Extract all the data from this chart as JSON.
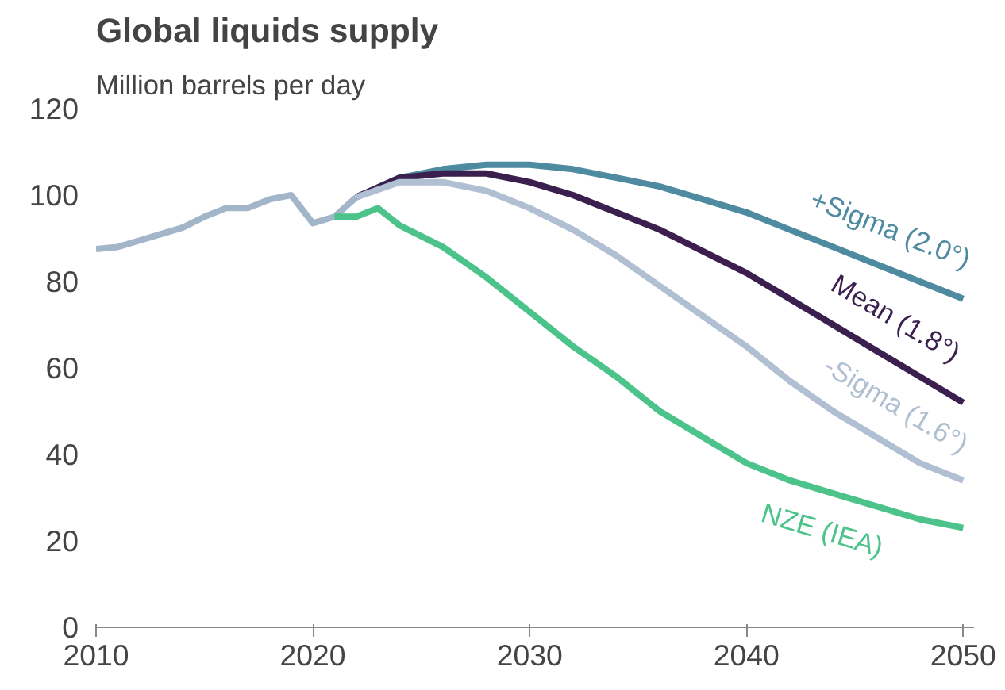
{
  "chart_data": {
    "type": "line",
    "title": "Global liquids supply",
    "subtitle": "Million barrels per day",
    "xlim": [
      2010,
      2050.5
    ],
    "xticks": [
      2010,
      2020,
      2030,
      2040,
      2050
    ],
    "ylim": [
      0,
      120
    ],
    "yticks": [
      0,
      20,
      40,
      60,
      80,
      100,
      120
    ],
    "grid": false,
    "marker": "none",
    "line_style": "solid",
    "series": [
      {
        "color": "#a3b6c9",
        "x": [
          2010,
          2011,
          2012,
          2013,
          2014,
          2015,
          2016,
          2017,
          2018,
          2019,
          2020,
          2021,
          2022
        ],
        "values": [
          87.5,
          88,
          89.5,
          91,
          92.5,
          95,
          97,
          97,
          99,
          100,
          93.5,
          95,
          99.5
        ]
      },
      {
        "name": "+Sigma (2.0°)",
        "color": "#4e8aa0",
        "x": [
          2022,
          2024,
          2026,
          2028,
          2030,
          2032,
          2034,
          2036,
          2038,
          2040,
          2042,
          2044,
          2046,
          2048,
          2050
        ],
        "values": [
          99.5,
          104,
          106,
          107,
          107,
          106,
          104,
          102,
          99,
          96,
          92,
          88,
          84,
          80,
          76
        ]
      },
      {
        "name": "Mean (1.8°)",
        "color": "#3b1f4f",
        "x": [
          2022,
          2024,
          2026,
          2028,
          2030,
          2032,
          2034,
          2036,
          2038,
          2040,
          2042,
          2044,
          2046,
          2048,
          2050
        ],
        "values": [
          99.5,
          104,
          105,
          105,
          103,
          100,
          96,
          92,
          87,
          82,
          76,
          70,
          64,
          58,
          52
        ]
      },
      {
        "name": "-Sigma (1.6°)",
        "color": "#b0bfd2",
        "x": [
          2022,
          2024,
          2026,
          2028,
          2030,
          2032,
          2034,
          2036,
          2038,
          2040,
          2042,
          2044,
          2046,
          2048,
          2050
        ],
        "values": [
          99.5,
          103,
          103,
          101,
          97,
          92,
          86,
          79,
          72,
          65,
          57,
          50,
          44,
          38,
          34
        ]
      },
      {
        "name": "NZE (IEA)",
        "color": "#4cc38a",
        "x": [
          2021,
          2022,
          2023,
          2024,
          2026,
          2028,
          2030,
          2032,
          2034,
          2036,
          2038,
          2040,
          2042,
          2044,
          2046,
          2048,
          2050
        ],
        "values": [
          95,
          95,
          97,
          93,
          88,
          81,
          73,
          65,
          58,
          50,
          44,
          38,
          34,
          31,
          28,
          25,
          23
        ]
      }
    ]
  }
}
